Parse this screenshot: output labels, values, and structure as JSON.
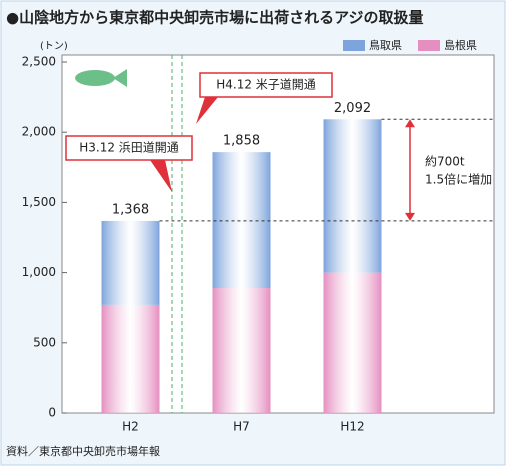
{
  "chart_data": {
    "type": "stacked-bar",
    "title": "●山陰地方から東京都中央卸売市場に出荷されるアジの取扱量",
    "y_unit": "(トン)",
    "categories": [
      "H2",
      "H7",
      "H12"
    ],
    "series": [
      {
        "name": "島根県",
        "color": "#e58fc0",
        "values": [
          770,
          890,
          1000
        ]
      },
      {
        "name": "鳥取県",
        "color": "#7da4dc",
        "values": [
          598,
          968,
          1092
        ]
      }
    ],
    "totals": [
      1368,
      1858,
      2092
    ],
    "total_labels": [
      "1,368",
      "1,858",
      "2,092"
    ],
    "ylim": [
      0,
      2500
    ],
    "yticks": [
      0,
      500,
      {
        "value": 1000,
        "label": "1,000"
      },
      {
        "value": 1500,
        "label": "1,500"
      },
      {
        "value": 2000,
        "label": "2,000"
      },
      {
        "value": 2500,
        "label": "2,500"
      }
    ],
    "annotations": [
      "H3.12 浜田道開通",
      "H4.12 米子道開通",
      "約700t",
      "1.5倍に増加"
    ],
    "source": "資料／東京都中央卸売市場年報"
  }
}
